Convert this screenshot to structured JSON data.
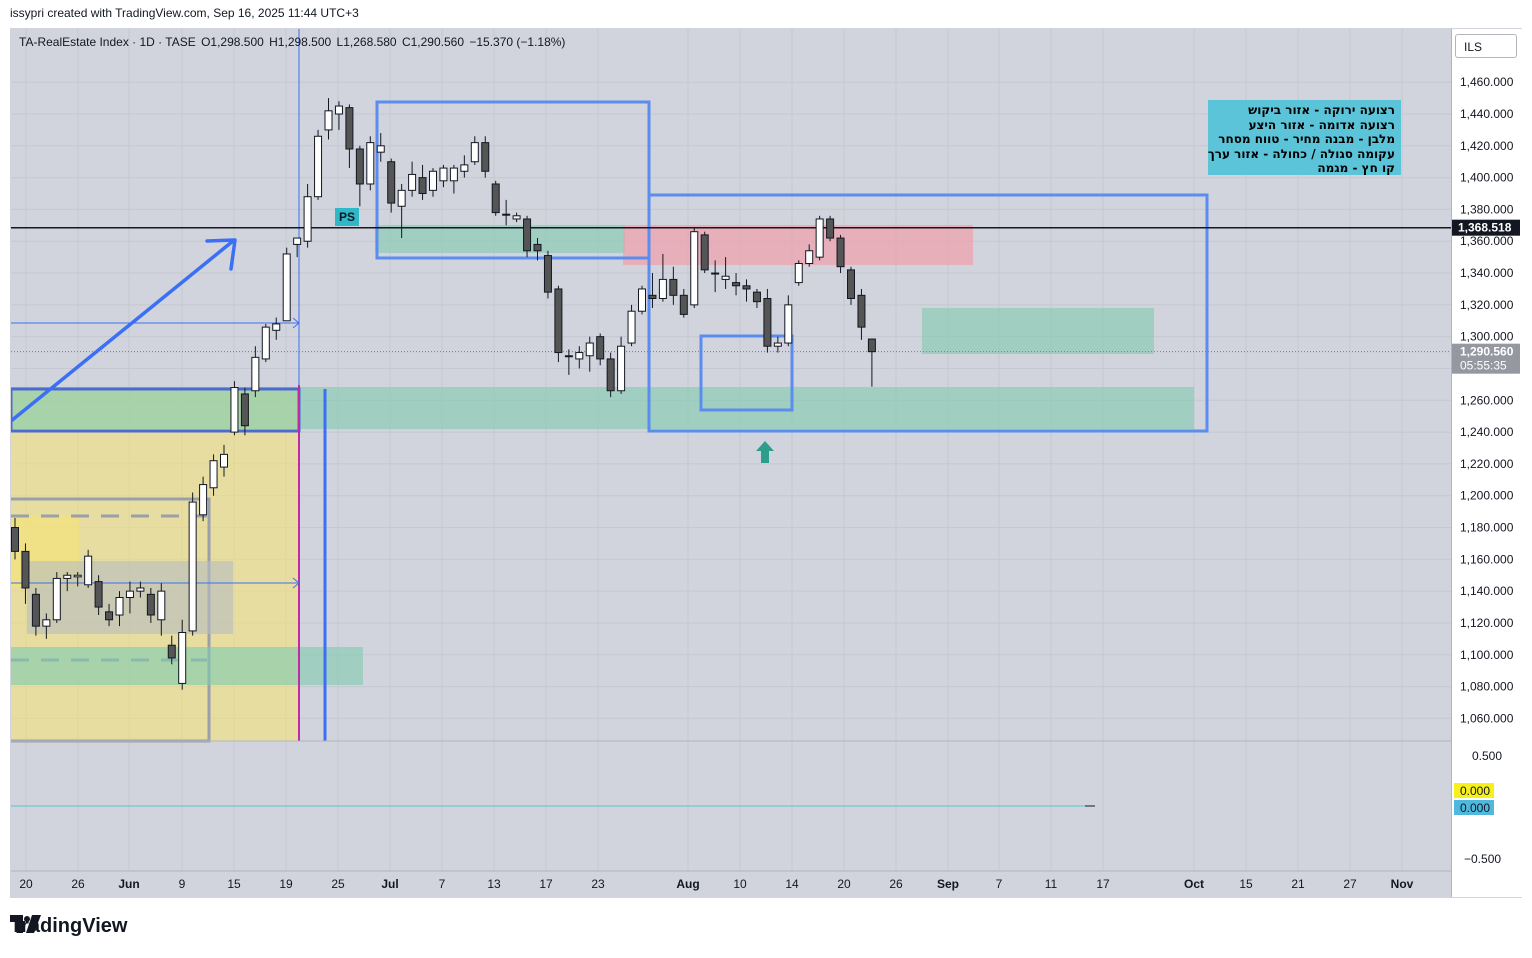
{
  "header": {
    "attribution": "issypri created with TradingView.com, Sep 16, 2025 11:44 UTC+3"
  },
  "legend": {
    "symbol": "TA-RealEstate Index · 1D · TASE",
    "open": "O1,298.500",
    "high": "H1,298.500",
    "low": "L1,268.580",
    "close": "C1,290.560",
    "change": "−15.370 (−1.18%)"
  },
  "currency_button": "ILS",
  "annotation": {
    "ps_label": "PS",
    "note_lines": [
      "רצועה ירוקה - אזור ביקוש",
      "רצועה אדומה - אזור היצע",
      "מלבן - מבנה מחיר - טווח מסחר",
      "עקומה סגולה / כחולה - אזור ערך",
      "קו חץ - מגמה"
    ]
  },
  "price_axis": {
    "ticks": [
      "1,460.000",
      "1,440.000",
      "1,420.000",
      "1,400.000",
      "1,380.000",
      "1,360.000",
      "1,340.000",
      "1,320.000",
      "1,300.000",
      "1,260.000",
      "1,240.000",
      "1,220.000",
      "1,200.000",
      "1,180.000",
      "1,160.000",
      "1,140.000",
      "1,120.000",
      "1,100.000",
      "1,080.000",
      "1,060.000"
    ],
    "horizontal_line_label": "1,368.518",
    "last_price_label": "1,290.560",
    "countdown": "05:55:35"
  },
  "indicator_axis": {
    "ticks": [
      "0.500",
      "−0.500"
    ],
    "value_yellow": "0.000",
    "value_cyan": "0.000"
  },
  "time_axis": {
    "labels": [
      {
        "text": "20",
        "bold": false
      },
      {
        "text": "26",
        "bold": false
      },
      {
        "text": "Jun",
        "bold": true
      },
      {
        "text": "9",
        "bold": false
      },
      {
        "text": "15",
        "bold": false
      },
      {
        "text": "19",
        "bold": false
      },
      {
        "text": "25",
        "bold": false
      },
      {
        "text": "Jul",
        "bold": true
      },
      {
        "text": "7",
        "bold": false
      },
      {
        "text": "13",
        "bold": false
      },
      {
        "text": "17",
        "bold": false
      },
      {
        "text": "23",
        "bold": false
      },
      {
        "text": "Aug",
        "bold": true
      },
      {
        "text": "10",
        "bold": false
      },
      {
        "text": "14",
        "bold": false
      },
      {
        "text": "20",
        "bold": false
      },
      {
        "text": "26",
        "bold": false
      },
      {
        "text": "Sep",
        "bold": true
      },
      {
        "text": "7",
        "bold": false
      },
      {
        "text": "11",
        "bold": false
      },
      {
        "text": "17",
        "bold": false
      },
      {
        "text": "Oct",
        "bold": true
      },
      {
        "text": "15",
        "bold": false
      },
      {
        "text": "21",
        "bold": false
      },
      {
        "text": "27",
        "bold": false
      },
      {
        "text": "Nov",
        "bold": true
      }
    ]
  },
  "colors": {
    "background": "#d1d4dc",
    "up_candle": "#ffffff",
    "down_candle": "#555555",
    "demand_zone": "#7fcbb0",
    "supply_zone": "#f0a0aa",
    "structure_box": "#5b8def",
    "yellow_zone": "#f5e27a",
    "note_bg": "#5bc4d8",
    "last_price_bg": "#9598a1"
  },
  "chart_data": {
    "type": "candlestick",
    "ylim": [
      1050,
      1475
    ],
    "horizontal_line": 1368.518,
    "last_price": 1290.56,
    "series": [
      {
        "date": "May 21",
        "open": 1180,
        "high": 1186,
        "low": 1160,
        "close": 1165
      },
      {
        "date": "May 22",
        "open": 1165,
        "high": 1170,
        "low": 1132,
        "close": 1142
      },
      {
        "date": "May 25",
        "open": 1138,
        "high": 1142,
        "low": 1112,
        "close": 1118
      },
      {
        "date": "May 26",
        "open": 1118,
        "high": 1126,
        "low": 1110,
        "close": 1122
      },
      {
        "date": "May 27",
        "open": 1122,
        "high": 1152,
        "low": 1120,
        "close": 1148
      },
      {
        "date": "May 28",
        "open": 1148,
        "high": 1152,
        "low": 1140,
        "close": 1150
      },
      {
        "date": "May 29",
        "open": 1149,
        "high": 1152,
        "low": 1143,
        "close": 1150
      },
      {
        "date": "Jun 1",
        "open": 1144,
        "high": 1166,
        "low": 1142,
        "close": 1162
      },
      {
        "date": "Jun 2",
        "open": 1146,
        "high": 1150,
        "low": 1125,
        "close": 1130
      },
      {
        "date": "Jun 3",
        "open": 1127,
        "high": 1132,
        "low": 1118,
        "close": 1122
      },
      {
        "date": "Jun 4",
        "open": 1125,
        "high": 1140,
        "low": 1118,
        "close": 1136
      },
      {
        "date": "Jun 5",
        "open": 1136,
        "high": 1146,
        "low": 1126,
        "close": 1140
      },
      {
        "date": "Jun 8",
        "open": 1140,
        "high": 1146,
        "low": 1136,
        "close": 1142
      },
      {
        "date": "Jun 9",
        "open": 1138,
        "high": 1142,
        "low": 1120,
        "close": 1125
      },
      {
        "date": "Jun 10",
        "open": 1122,
        "high": 1145,
        "low": 1112,
        "close": 1140
      },
      {
        "date": "Jun 11",
        "open": 1106,
        "high": 1112,
        "low": 1094,
        "close": 1098
      },
      {
        "date": "Jun 12",
        "open": 1082,
        "high": 1122,
        "low": 1078,
        "close": 1114
      },
      {
        "date": "Jun 15",
        "open": 1115,
        "high": 1202,
        "low": 1112,
        "close": 1196
      },
      {
        "date": "Jun 16",
        "open": 1188,
        "high": 1212,
        "low": 1184,
        "close": 1207
      },
      {
        "date": "Jun 17",
        "open": 1205,
        "high": 1226,
        "low": 1200,
        "close": 1222
      },
      {
        "date": "Jun 18",
        "open": 1218,
        "high": 1232,
        "low": 1212,
        "close": 1226
      },
      {
        "date": "Jun 19",
        "open": 1240,
        "high": 1272,
        "low": 1238,
        "close": 1268
      },
      {
        "date": "Jun 22",
        "open": 1264,
        "high": 1268,
        "low": 1238,
        "close": 1244
      },
      {
        "date": "Jun 23",
        "open": 1266,
        "high": 1294,
        "low": 1262,
        "close": 1287
      },
      {
        "date": "Jun 24",
        "open": 1286,
        "high": 1308,
        "low": 1284,
        "close": 1306
      },
      {
        "date": "Jun 25",
        "open": 1304,
        "high": 1312,
        "low": 1298,
        "close": 1308
      },
      {
        "date": "Jun 26",
        "open": 1310,
        "high": 1356,
        "low": 1310,
        "close": 1352
      },
      {
        "date": "Jun 29",
        "open": 1358,
        "high": 1362,
        "low": 1350,
        "close": 1362
      },
      {
        "date": "Jun 30",
        "open": 1360,
        "high": 1396,
        "low": 1356,
        "close": 1388
      },
      {
        "date": "Jul 1",
        "open": 1388,
        "high": 1430,
        "low": 1386,
        "close": 1426
      },
      {
        "date": "Jul 2",
        "open": 1430,
        "high": 1450,
        "low": 1424,
        "close": 1442
      },
      {
        "date": "Jul 3",
        "open": 1440,
        "high": 1448,
        "low": 1430,
        "close": 1445
      },
      {
        "date": "Jul 6",
        "open": 1444,
        "high": 1446,
        "low": 1406,
        "close": 1418
      },
      {
        "date": "Jul 7",
        "open": 1418,
        "high": 1420,
        "low": 1382,
        "close": 1396
      },
      {
        "date": "Jul 8",
        "open": 1396,
        "high": 1426,
        "low": 1392,
        "close": 1422
      },
      {
        "date": "Jul 9",
        "open": 1416,
        "high": 1428,
        "low": 1410,
        "close": 1420
      },
      {
        "date": "Jul 10",
        "open": 1410,
        "high": 1412,
        "low": 1378,
        "close": 1384
      },
      {
        "date": "Jul 13",
        "open": 1382,
        "high": 1396,
        "low": 1362,
        "close": 1392
      },
      {
        "date": "Jul 14",
        "open": 1392,
        "high": 1410,
        "low": 1388,
        "close": 1402
      },
      {
        "date": "Jul 15",
        "open": 1400,
        "high": 1408,
        "low": 1386,
        "close": 1390
      },
      {
        "date": "Jul 16",
        "open": 1392,
        "high": 1406,
        "low": 1388,
        "close": 1404
      },
      {
        "date": "Jul 17",
        "open": 1398,
        "high": 1408,
        "low": 1394,
        "close": 1406
      },
      {
        "date": "Jul 20",
        "open": 1398,
        "high": 1408,
        "low": 1390,
        "close": 1406
      },
      {
        "date": "Jul 21",
        "open": 1404,
        "high": 1414,
        "low": 1400,
        "close": 1408
      },
      {
        "date": "Jul 22",
        "open": 1410,
        "high": 1426,
        "low": 1408,
        "close": 1422
      },
      {
        "date": "Jul 23",
        "open": 1422,
        "high": 1426,
        "low": 1400,
        "close": 1404
      },
      {
        "date": "Jul 24",
        "open": 1396,
        "high": 1398,
        "low": 1376,
        "close": 1378
      },
      {
        "date": "Jul 27",
        "open": 1377,
        "high": 1386,
        "low": 1370,
        "close": 1377
      },
      {
        "date": "Jul 28",
        "open": 1374,
        "high": 1378,
        "low": 1372,
        "close": 1376
      },
      {
        "date": "Jul 29",
        "open": 1374,
        "high": 1376,
        "low": 1350,
        "close": 1354
      },
      {
        "date": "Jul 30",
        "open": 1358,
        "high": 1362,
        "low": 1348,
        "close": 1354
      },
      {
        "date": "Jul 31",
        "open": 1351,
        "high": 1354,
        "low": 1324,
        "close": 1328
      },
      {
        "date": "Aug 3",
        "open": 1330,
        "high": 1332,
        "low": 1284,
        "close": 1290
      },
      {
        "date": "Aug 4",
        "open": 1288,
        "high": 1292,
        "low": 1276,
        "close": 1288
      },
      {
        "date": "Aug 5",
        "open": 1286,
        "high": 1294,
        "low": 1280,
        "close": 1290
      },
      {
        "date": "Aug 6",
        "open": 1288,
        "high": 1300,
        "low": 1278,
        "close": 1296
      },
      {
        "date": "Aug 7",
        "open": 1300,
        "high": 1302,
        "low": 1282,
        "close": 1286
      },
      {
        "date": "Aug 10",
        "open": 1286,
        "high": 1290,
        "low": 1262,
        "close": 1266
      },
      {
        "date": "Aug 11",
        "open": 1266,
        "high": 1300,
        "low": 1264,
        "close": 1294
      },
      {
        "date": "Aug 12",
        "open": 1296,
        "high": 1320,
        "low": 1294,
        "close": 1316
      },
      {
        "date": "Aug 13",
        "open": 1316,
        "high": 1332,
        "low": 1314,
        "close": 1330
      },
      {
        "date": "Aug 14",
        "open": 1326,
        "high": 1340,
        "low": 1318,
        "close": 1324
      },
      {
        "date": "Aug 17",
        "open": 1324,
        "high": 1352,
        "low": 1322,
        "close": 1336
      },
      {
        "date": "Aug 18",
        "open": 1336,
        "high": 1344,
        "low": 1320,
        "close": 1326
      },
      {
        "date": "Aug 19",
        "open": 1326,
        "high": 1330,
        "low": 1312,
        "close": 1314
      },
      {
        "date": "Aug 20",
        "open": 1320,
        "high": 1368,
        "low": 1318,
        "close": 1366
      },
      {
        "date": "Aug 21",
        "open": 1364,
        "high": 1366,
        "low": 1340,
        "close": 1342
      },
      {
        "date": "Aug 24",
        "open": 1340,
        "high": 1348,
        "low": 1328,
        "close": 1340
      },
      {
        "date": "Aug 25",
        "open": 1336,
        "high": 1350,
        "low": 1330,
        "close": 1338
      },
      {
        "date": "Aug 26",
        "open": 1334,
        "high": 1340,
        "low": 1326,
        "close": 1332
      },
      {
        "date": "Aug 27",
        "open": 1332,
        "high": 1336,
        "low": 1322,
        "close": 1330
      },
      {
        "date": "Aug 28",
        "open": 1328,
        "high": 1330,
        "low": 1318,
        "close": 1322
      },
      {
        "date": "Aug 31",
        "open": 1324,
        "high": 1330,
        "low": 1290,
        "close": 1294
      },
      {
        "date": "Sep 1",
        "open": 1294,
        "high": 1300,
        "low": 1290,
        "close": 1296
      },
      {
        "date": "Sep 2",
        "open": 1296,
        "high": 1326,
        "low": 1294,
        "close": 1320
      },
      {
        "date": "Sep 3",
        "open": 1334,
        "high": 1348,
        "low": 1332,
        "close": 1346
      },
      {
        "date": "Sep 4",
        "open": 1346,
        "high": 1358,
        "low": 1344,
        "close": 1354
      },
      {
        "date": "Sep 7",
        "open": 1350,
        "high": 1376,
        "low": 1348,
        "close": 1374
      },
      {
        "date": "Sep 8",
        "open": 1374,
        "high": 1376,
        "low": 1360,
        "close": 1362
      },
      {
        "date": "Sep 9",
        "open": 1362,
        "high": 1364,
        "low": 1340,
        "close": 1344
      },
      {
        "date": "Sep 10",
        "open": 1342,
        "high": 1344,
        "low": 1320,
        "close": 1324
      },
      {
        "date": "Sep 11",
        "open": 1326,
        "high": 1330,
        "low": 1298,
        "close": 1306
      },
      {
        "date": "Sep 14",
        "open": 1298.5,
        "high": 1298.5,
        "low": 1268.58,
        "close": 1290.56
      }
    ]
  }
}
